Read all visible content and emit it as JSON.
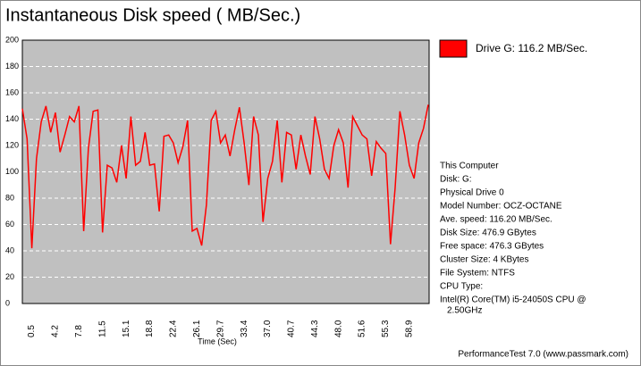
{
  "chart_data": {
    "type": "line",
    "title": "Instantaneous Disk speed ( MB/Sec.)",
    "x_label": "Time (Sec)",
    "categories": [
      null,
      null,
      "0.5",
      null,
      null,
      null,
      null,
      "4.2",
      null,
      null,
      null,
      null,
      "7.8",
      null,
      null,
      null,
      null,
      "11.5",
      null,
      null,
      null,
      null,
      "15.1",
      null,
      null,
      null,
      null,
      "18.8",
      null,
      null,
      null,
      null,
      "22.4",
      null,
      null,
      null,
      null,
      "26.1",
      null,
      null,
      null,
      null,
      "29.7",
      null,
      null,
      null,
      null,
      "33.4",
      null,
      null,
      null,
      null,
      "37.0",
      null,
      null,
      null,
      null,
      "40.7",
      null,
      null,
      null,
      null,
      "44.3",
      null,
      null,
      null,
      null,
      "48.0",
      null,
      null,
      null,
      null,
      "51.6",
      null,
      null,
      null,
      null,
      "55.3",
      null,
      null,
      null,
      null,
      "58.9",
      null,
      null,
      null,
      null
    ],
    "series": [
      {
        "name": "Drive G: 116.2 MB/Sec.",
        "color": "#ff0000",
        "values": [
          148,
          125,
          42,
          110,
          138,
          150,
          130,
          145,
          115,
          128,
          142,
          138,
          150,
          55,
          118,
          146,
          147,
          54,
          105,
          103,
          92,
          120,
          95,
          142,
          105,
          108,
          130,
          105,
          106,
          70,
          127,
          128,
          122,
          107,
          119,
          139,
          55,
          57,
          44,
          75,
          139,
          146,
          122,
          128,
          112,
          132,
          149,
          122,
          90,
          142,
          128,
          62,
          95,
          108,
          139,
          92,
          130,
          128,
          102,
          128,
          112,
          98,
          142,
          125,
          102,
          95,
          120,
          132,
          122,
          88,
          142,
          135,
          128,
          125,
          97,
          123,
          118,
          114,
          45,
          88,
          146,
          128,
          105,
          95,
          122,
          133,
          151
        ]
      }
    ],
    "ylim": [
      0,
      200
    ],
    "yticks": [
      0,
      20,
      40,
      60,
      80,
      100,
      120,
      140,
      160,
      180,
      200
    ],
    "grid": true,
    "legend": "upper right",
    "info": [
      "This Computer",
      "Disk: G:",
      "Physical Drive 0",
      "Model Number: OCZ-OCTANE",
      "Ave. speed: 116.20 MB/Sec.",
      "Disk Size: 476.9 GBytes",
      "Free space: 476.3 GBytes",
      "Cluster Size: 4 KBytes",
      "File System: NTFS",
      "CPU Type:",
      "Intel(R) Core(TM) i5-24050S CPU @",
      "2.50GHz"
    ],
    "footer": "PerformanceTest 7.0 (www.passmark.com)"
  }
}
